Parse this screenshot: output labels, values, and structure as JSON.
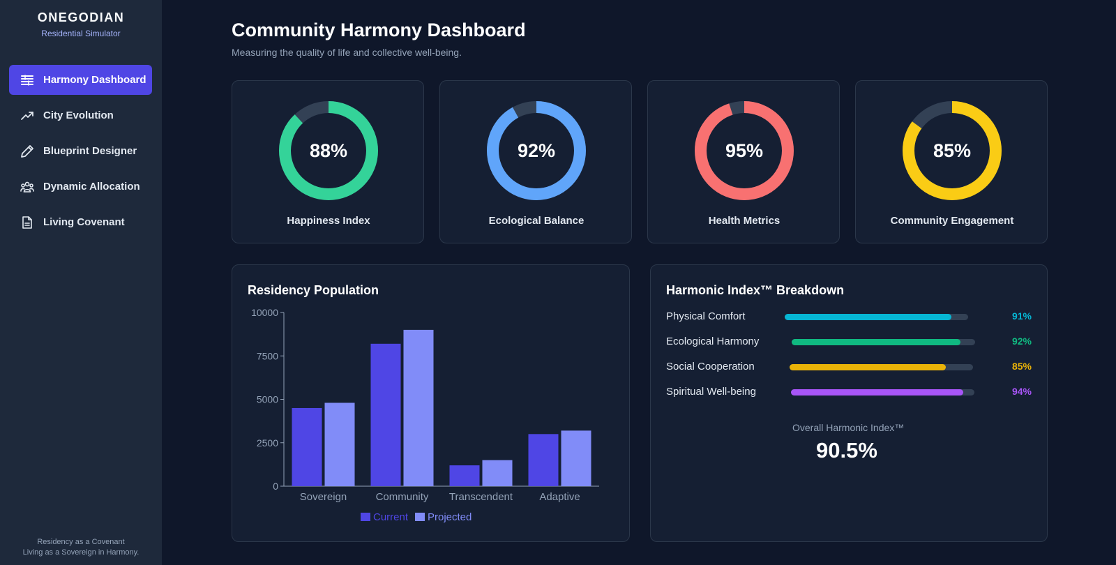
{
  "sidebar": {
    "brand": "ONEGODIAN",
    "subtitle": "Residential Simulator",
    "items": [
      {
        "label": "Harmony Dashboard",
        "icon": "dashboard-icon",
        "active": true
      },
      {
        "label": "City Evolution",
        "icon": "trending-up-icon",
        "active": false
      },
      {
        "label": "Blueprint Designer",
        "icon": "pencil-icon",
        "active": false
      },
      {
        "label": "Dynamic Allocation",
        "icon": "users-icon",
        "active": false
      },
      {
        "label": "Living Covenant",
        "icon": "document-icon",
        "active": false
      }
    ],
    "footer_line1": "Residency as a Covenant",
    "footer_line2": "Living as a Sovereign in Harmony."
  },
  "header": {
    "title": "Community Harmony Dashboard",
    "subtitle": "Measuring the quality of life and collective well-being."
  },
  "metrics": [
    {
      "value": "88%",
      "label": "Happiness Index",
      "percent": 88,
      "color": "#34d399"
    },
    {
      "value": "92%",
      "label": "Ecological Balance",
      "percent": 92,
      "color": "#60a5fa"
    },
    {
      "value": "95%",
      "label": "Health Metrics",
      "percent": 95,
      "color": "#f87171"
    },
    {
      "value": "85%",
      "label": "Community Engagement",
      "percent": 85,
      "color": "#facc15"
    }
  ],
  "population_panel": {
    "title": "Residency Population"
  },
  "chart_data": {
    "type": "bar",
    "categories": [
      "Sovereign",
      "Community",
      "Transcendent",
      "Adaptive"
    ],
    "series": [
      {
        "name": "Current",
        "values": [
          4500,
          8200,
          1200,
          3000
        ],
        "color": "#4f46e5"
      },
      {
        "name": "Projected",
        "values": [
          4800,
          9000,
          1500,
          3200
        ],
        "color": "#818cf8"
      }
    ],
    "yticks": [
      "10000",
      "7500",
      "5000",
      "2500",
      "0"
    ],
    "ylim": [
      0,
      10000
    ],
    "legend_position": "bottom"
  },
  "breakdown": {
    "title": "Harmonic Index™ Breakdown",
    "rows": [
      {
        "label": "Physical Comfort",
        "value": "91%",
        "fraction": 0.91,
        "color": "#06b6d4"
      },
      {
        "label": "Ecological Harmony",
        "value": "92%",
        "fraction": 0.92,
        "color": "#10b981"
      },
      {
        "label": "Social Cooperation",
        "value": "85%",
        "fraction": 0.85,
        "color": "#eab308"
      },
      {
        "label": "Spiritual Well-being",
        "value": "94%",
        "fraction": 0.94,
        "color": "#a855f7"
      }
    ],
    "overall_label": "Overall Harmonic Index™",
    "overall_value": "90.5%"
  }
}
